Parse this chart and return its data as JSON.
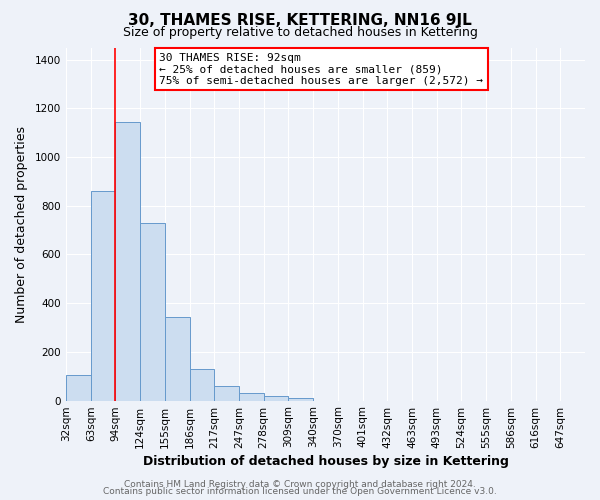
{
  "title": "30, THAMES RISE, KETTERING, NN16 9JL",
  "subtitle": "Size of property relative to detached houses in Kettering",
  "xlabel": "Distribution of detached houses by size in Kettering",
  "ylabel": "Number of detached properties",
  "bar_values": [
    105,
    860,
    1145,
    730,
    345,
    130,
    60,
    30,
    18,
    10,
    0,
    0,
    0,
    0,
    0,
    0,
    0,
    0,
    0,
    0,
    0
  ],
  "bar_labels": [
    "32sqm",
    "63sqm",
    "94sqm",
    "124sqm",
    "155sqm",
    "186sqm",
    "217sqm",
    "247sqm",
    "278sqm",
    "309sqm",
    "340sqm",
    "370sqm",
    "401sqm",
    "432sqm",
    "463sqm",
    "493sqm",
    "524sqm",
    "555sqm",
    "586sqm",
    "616sqm",
    "647sqm"
  ],
  "bar_color": "#ccddf0",
  "bar_edge_color": "#6699cc",
  "red_line_x": 2,
  "annotation_line1": "30 THAMES RISE: 92sqm",
  "annotation_line2": "← 25% of detached houses are smaller (859)",
  "annotation_line3": "75% of semi-detached houses are larger (2,572) →",
  "ylim": [
    0,
    1450
  ],
  "yticks": [
    0,
    200,
    400,
    600,
    800,
    1000,
    1200,
    1400
  ],
  "footer_line1": "Contains HM Land Registry data © Crown copyright and database right 2024.",
  "footer_line2": "Contains public sector information licensed under the Open Government Licence v3.0.",
  "background_color": "#eef2f9",
  "grid_color": "#ffffff",
  "title_fontsize": 11,
  "subtitle_fontsize": 9,
  "axis_label_fontsize": 9,
  "tick_fontsize": 7.5,
  "annotation_fontsize": 8,
  "footer_fontsize": 6.5
}
